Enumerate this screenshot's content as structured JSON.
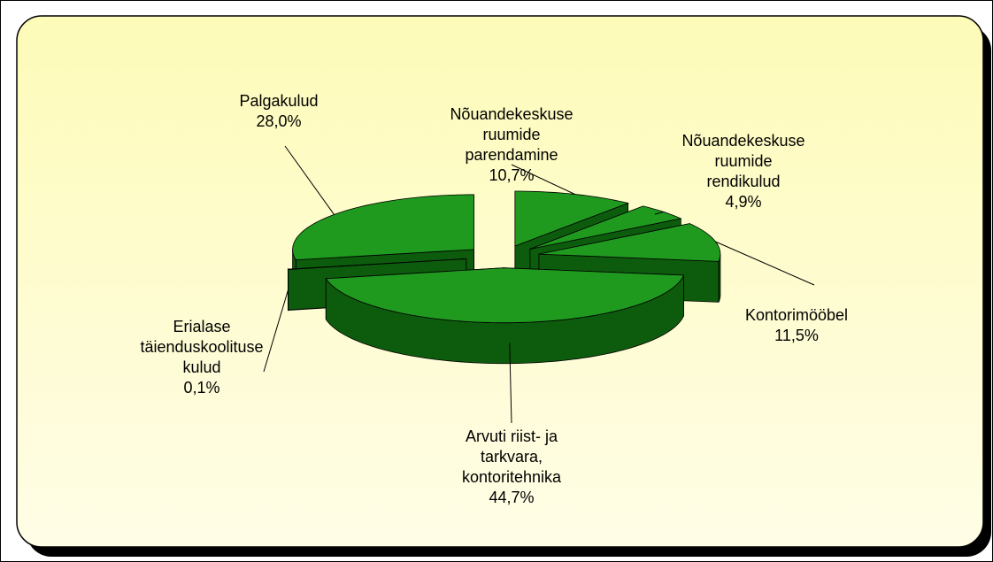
{
  "chart_data": {
    "type": "pie",
    "categories": [
      "Nõuandekeskuse ruumide parendamine",
      "Nõuandekeskuse ruumide rendikulud",
      "Kontorimööbel",
      "Arvuti riist- ja tarkvara, kontoritehnika",
      "Erialase täienduskoolituse kulud",
      "Palgakulud"
    ],
    "values": [
      10.7,
      4.9,
      11.5,
      44.7,
      0.1,
      28.0
    ],
    "value_labels": [
      "10,7%",
      "4,9%",
      "11,5%",
      "44,7%",
      "0,1%",
      "28,0%"
    ],
    "color": "#1f9a1f",
    "side_color": "#0d5c0d",
    "exploded": true,
    "three_d": true
  }
}
